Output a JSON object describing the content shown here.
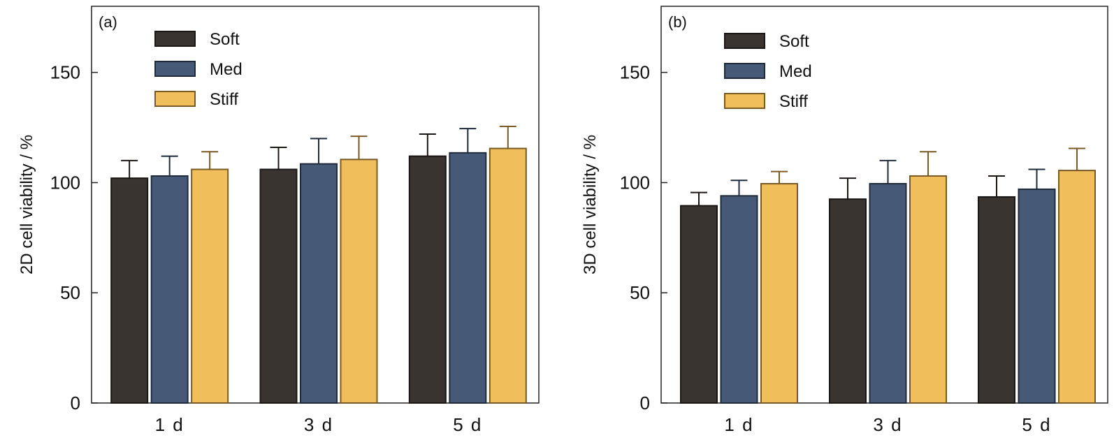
{
  "chart_data": [
    {
      "type": "bar",
      "panel_label": "(a)",
      "ylabel": "2D cell viability / %",
      "xlabel": "",
      "ylim": [
        0,
        180
      ],
      "yticks": [
        0,
        50,
        100,
        150
      ],
      "categories": [
        "1 d",
        "3 d",
        "5 d"
      ],
      "legend_position": "top-left",
      "grid": false,
      "series": [
        {
          "name": "Soft",
          "color": "#3a3431",
          "edge": "#1a1614",
          "values": [
            102,
            106,
            112
          ],
          "errors": [
            8,
            10,
            10
          ]
        },
        {
          "name": "Med",
          "color": "#465a78",
          "edge": "#1f2a3a",
          "values": [
            103,
            108.5,
            113.5
          ],
          "errors": [
            9,
            11.5,
            11
          ]
        },
        {
          "name": "Stiff",
          "color": "#f0bf5c",
          "edge": "#7a5a24",
          "values": [
            106,
            110.5,
            115.5
          ],
          "errors": [
            8,
            10.5,
            10
          ]
        }
      ]
    },
    {
      "type": "bar",
      "panel_label": "(b)",
      "ylabel": "3D cell viability / %",
      "xlabel": "",
      "ylim": [
        0,
        180
      ],
      "yticks": [
        0,
        50,
        100,
        150
      ],
      "categories": [
        "1 d",
        "3 d",
        "5 d"
      ],
      "legend_position": "top-left",
      "grid": false,
      "series": [
        {
          "name": "Soft",
          "color": "#3a3431",
          "edge": "#1a1614",
          "values": [
            89.5,
            92.5,
            93.5
          ],
          "errors": [
            6,
            9.5,
            9.5
          ]
        },
        {
          "name": "Med",
          "color": "#465a78",
          "edge": "#1f2a3a",
          "values": [
            94,
            99.5,
            97
          ],
          "errors": [
            7,
            10.5,
            9
          ]
        },
        {
          "name": "Stiff",
          "color": "#f0bf5c",
          "edge": "#7a5a24",
          "values": [
            99.5,
            103,
            105.5
          ],
          "errors": [
            5.5,
            11,
            10
          ]
        }
      ]
    }
  ]
}
